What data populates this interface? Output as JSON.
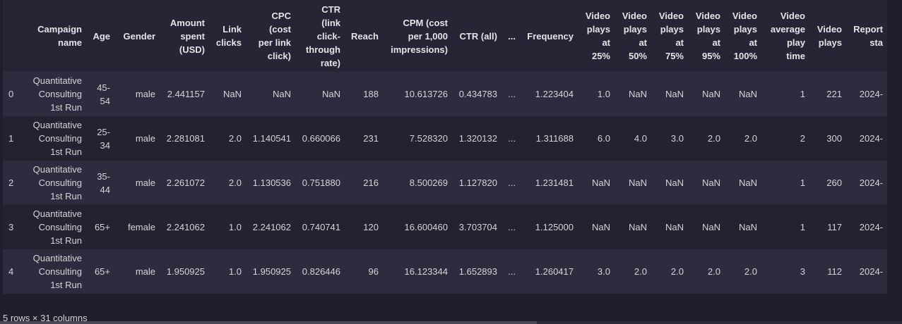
{
  "table": {
    "columns": [
      {
        "label": "",
        "name": "index"
      },
      {
        "label": "Campaign\nname",
        "name": "campaign-name"
      },
      {
        "label": "Age",
        "name": "age"
      },
      {
        "label": "Gender",
        "name": "gender"
      },
      {
        "label": "Amount\nspent\n(USD)",
        "name": "amount-spent"
      },
      {
        "label": "Link\nclicks",
        "name": "link-clicks"
      },
      {
        "label": "CPC\n(cost\nper link\nclick)",
        "name": "cpc"
      },
      {
        "label": "CTR\n(link\nclick-\nthrough\nrate)",
        "name": "ctr-link"
      },
      {
        "label": "Reach",
        "name": "reach"
      },
      {
        "label": "CPM (cost\nper 1,000\nimpressions)",
        "name": "cpm"
      },
      {
        "label": "CTR (all)",
        "name": "ctr-all"
      },
      {
        "label": "...",
        "name": "ellipsis"
      },
      {
        "label": "Frequency",
        "name": "frequency"
      },
      {
        "label": "Video\nplays\nat\n25%",
        "name": "video-25"
      },
      {
        "label": "Video\nplays\nat\n50%",
        "name": "video-50"
      },
      {
        "label": "Video\nplays\nat\n75%",
        "name": "video-75"
      },
      {
        "label": "Video\nplays\nat\n95%",
        "name": "video-95"
      },
      {
        "label": "Video\nplays\nat\n100%",
        "name": "video-100"
      },
      {
        "label": "Video\naverage\nplay\ntime",
        "name": "video-avg"
      },
      {
        "label": "Video\nplays",
        "name": "video-plays"
      },
      {
        "label": "Report\nsta",
        "name": "report-start"
      }
    ],
    "rows": [
      {
        "index": "0",
        "campaign": "Quantitative\nConsulting\n1st Run",
        "age": "45-\n54",
        "gender": "male",
        "amount": "2.441157",
        "link_clicks": "NaN",
        "cpc": "NaN",
        "ctr": "NaN",
        "reach": "188",
        "cpm": "10.613726",
        "ctr_all": "0.434783",
        "ellipsis": "...",
        "frequency": "1.223404",
        "v25": "1.0",
        "v50": "NaN",
        "v75": "NaN",
        "v95": "NaN",
        "v100": "NaN",
        "vavg": "1",
        "vplays": "221",
        "report": "2024-"
      },
      {
        "index": "1",
        "campaign": "Quantitative\nConsulting\n1st Run",
        "age": "25-\n34",
        "gender": "male",
        "amount": "2.281081",
        "link_clicks": "2.0",
        "cpc": "1.140541",
        "ctr": "0.660066",
        "reach": "231",
        "cpm": "7.528320",
        "ctr_all": "1.320132",
        "ellipsis": "...",
        "frequency": "1.311688",
        "v25": "6.0",
        "v50": "4.0",
        "v75": "3.0",
        "v95": "2.0",
        "v100": "2.0",
        "vavg": "2",
        "vplays": "300",
        "report": "2024-"
      },
      {
        "index": "2",
        "campaign": "Quantitative\nConsulting\n1st Run",
        "age": "35-\n44",
        "gender": "male",
        "amount": "2.261072",
        "link_clicks": "2.0",
        "cpc": "1.130536",
        "ctr": "0.751880",
        "reach": "216",
        "cpm": "8.500269",
        "ctr_all": "1.127820",
        "ellipsis": "...",
        "frequency": "1.231481",
        "v25": "NaN",
        "v50": "NaN",
        "v75": "NaN",
        "v95": "NaN",
        "v100": "NaN",
        "vavg": "1",
        "vplays": "260",
        "report": "2024-"
      },
      {
        "index": "3",
        "campaign": "Quantitative\nConsulting\n1st Run",
        "age": "65+",
        "gender": "female",
        "amount": "2.241062",
        "link_clicks": "1.0",
        "cpc": "2.241062",
        "ctr": "0.740741",
        "reach": "120",
        "cpm": "16.600460",
        "ctr_all": "3.703704",
        "ellipsis": "...",
        "frequency": "1.125000",
        "v25": "NaN",
        "v50": "NaN",
        "v75": "NaN",
        "v95": "NaN",
        "v100": "NaN",
        "vavg": "1",
        "vplays": "117",
        "report": "2024-"
      },
      {
        "index": "4",
        "campaign": "Quantitative\nConsulting\n1st Run",
        "age": "65+",
        "gender": "male",
        "amount": "1.950925",
        "link_clicks": "1.0",
        "cpc": "1.950925",
        "ctr": "0.826446",
        "reach": "96",
        "cpm": "16.123344",
        "ctr_all": "1.652893",
        "ellipsis": "...",
        "frequency": "1.260417",
        "v25": "3.0",
        "v50": "2.0",
        "v75": "2.0",
        "v95": "2.0",
        "v100": "2.0",
        "vavg": "3",
        "vplays": "112",
        "report": "2024-"
      }
    ]
  },
  "footer": {
    "summary": "5 rows × 31 columns"
  },
  "colors": {
    "background": "#1f1e2c",
    "row_odd": "#2d2c3e",
    "row_even": "#232231",
    "text": "#d4d4d8"
  }
}
